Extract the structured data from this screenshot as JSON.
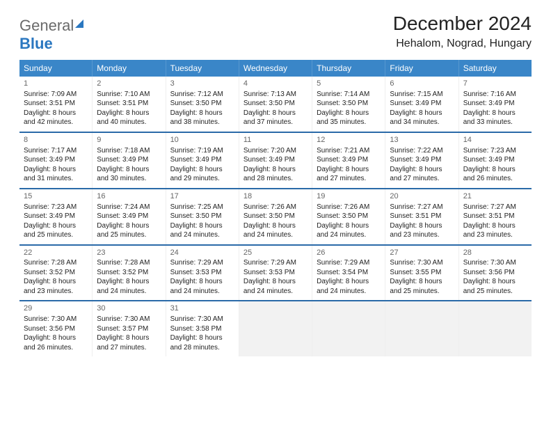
{
  "brand": {
    "word1": "General",
    "word2": "Blue"
  },
  "title": "December 2024",
  "location": "Hehalom, Nograd, Hungary",
  "colors": {
    "header_bg": "#3a86c8",
    "week_border": "#2a6aa8",
    "brand_gray": "#6a6a6a",
    "brand_blue": "#2a77c0",
    "empty_bg": "#f2f2f2"
  },
  "daynames": [
    "Sunday",
    "Monday",
    "Tuesday",
    "Wednesday",
    "Thursday",
    "Friday",
    "Saturday"
  ],
  "weeks": [
    [
      {
        "n": "1",
        "sr": "Sunrise: 7:09 AM",
        "ss": "Sunset: 3:51 PM",
        "d1": "Daylight: 8 hours",
        "d2": "and 42 minutes."
      },
      {
        "n": "2",
        "sr": "Sunrise: 7:10 AM",
        "ss": "Sunset: 3:51 PM",
        "d1": "Daylight: 8 hours",
        "d2": "and 40 minutes."
      },
      {
        "n": "3",
        "sr": "Sunrise: 7:12 AM",
        "ss": "Sunset: 3:50 PM",
        "d1": "Daylight: 8 hours",
        "d2": "and 38 minutes."
      },
      {
        "n": "4",
        "sr": "Sunrise: 7:13 AM",
        "ss": "Sunset: 3:50 PM",
        "d1": "Daylight: 8 hours",
        "d2": "and 37 minutes."
      },
      {
        "n": "5",
        "sr": "Sunrise: 7:14 AM",
        "ss": "Sunset: 3:50 PM",
        "d1": "Daylight: 8 hours",
        "d2": "and 35 minutes."
      },
      {
        "n": "6",
        "sr": "Sunrise: 7:15 AM",
        "ss": "Sunset: 3:49 PM",
        "d1": "Daylight: 8 hours",
        "d2": "and 34 minutes."
      },
      {
        "n": "7",
        "sr": "Sunrise: 7:16 AM",
        "ss": "Sunset: 3:49 PM",
        "d1": "Daylight: 8 hours",
        "d2": "and 33 minutes."
      }
    ],
    [
      {
        "n": "8",
        "sr": "Sunrise: 7:17 AM",
        "ss": "Sunset: 3:49 PM",
        "d1": "Daylight: 8 hours",
        "d2": "and 31 minutes."
      },
      {
        "n": "9",
        "sr": "Sunrise: 7:18 AM",
        "ss": "Sunset: 3:49 PM",
        "d1": "Daylight: 8 hours",
        "d2": "and 30 minutes."
      },
      {
        "n": "10",
        "sr": "Sunrise: 7:19 AM",
        "ss": "Sunset: 3:49 PM",
        "d1": "Daylight: 8 hours",
        "d2": "and 29 minutes."
      },
      {
        "n": "11",
        "sr": "Sunrise: 7:20 AM",
        "ss": "Sunset: 3:49 PM",
        "d1": "Daylight: 8 hours",
        "d2": "and 28 minutes."
      },
      {
        "n": "12",
        "sr": "Sunrise: 7:21 AM",
        "ss": "Sunset: 3:49 PM",
        "d1": "Daylight: 8 hours",
        "d2": "and 27 minutes."
      },
      {
        "n": "13",
        "sr": "Sunrise: 7:22 AM",
        "ss": "Sunset: 3:49 PM",
        "d1": "Daylight: 8 hours",
        "d2": "and 27 minutes."
      },
      {
        "n": "14",
        "sr": "Sunrise: 7:23 AM",
        "ss": "Sunset: 3:49 PM",
        "d1": "Daylight: 8 hours",
        "d2": "and 26 minutes."
      }
    ],
    [
      {
        "n": "15",
        "sr": "Sunrise: 7:23 AM",
        "ss": "Sunset: 3:49 PM",
        "d1": "Daylight: 8 hours",
        "d2": "and 25 minutes."
      },
      {
        "n": "16",
        "sr": "Sunrise: 7:24 AM",
        "ss": "Sunset: 3:49 PM",
        "d1": "Daylight: 8 hours",
        "d2": "and 25 minutes."
      },
      {
        "n": "17",
        "sr": "Sunrise: 7:25 AM",
        "ss": "Sunset: 3:50 PM",
        "d1": "Daylight: 8 hours",
        "d2": "and 24 minutes."
      },
      {
        "n": "18",
        "sr": "Sunrise: 7:26 AM",
        "ss": "Sunset: 3:50 PM",
        "d1": "Daylight: 8 hours",
        "d2": "and 24 minutes."
      },
      {
        "n": "19",
        "sr": "Sunrise: 7:26 AM",
        "ss": "Sunset: 3:50 PM",
        "d1": "Daylight: 8 hours",
        "d2": "and 24 minutes."
      },
      {
        "n": "20",
        "sr": "Sunrise: 7:27 AM",
        "ss": "Sunset: 3:51 PM",
        "d1": "Daylight: 8 hours",
        "d2": "and 23 minutes."
      },
      {
        "n": "21",
        "sr": "Sunrise: 7:27 AM",
        "ss": "Sunset: 3:51 PM",
        "d1": "Daylight: 8 hours",
        "d2": "and 23 minutes."
      }
    ],
    [
      {
        "n": "22",
        "sr": "Sunrise: 7:28 AM",
        "ss": "Sunset: 3:52 PM",
        "d1": "Daylight: 8 hours",
        "d2": "and 23 minutes."
      },
      {
        "n": "23",
        "sr": "Sunrise: 7:28 AM",
        "ss": "Sunset: 3:52 PM",
        "d1": "Daylight: 8 hours",
        "d2": "and 24 minutes."
      },
      {
        "n": "24",
        "sr": "Sunrise: 7:29 AM",
        "ss": "Sunset: 3:53 PM",
        "d1": "Daylight: 8 hours",
        "d2": "and 24 minutes."
      },
      {
        "n": "25",
        "sr": "Sunrise: 7:29 AM",
        "ss": "Sunset: 3:53 PM",
        "d1": "Daylight: 8 hours",
        "d2": "and 24 minutes."
      },
      {
        "n": "26",
        "sr": "Sunrise: 7:29 AM",
        "ss": "Sunset: 3:54 PM",
        "d1": "Daylight: 8 hours",
        "d2": "and 24 minutes."
      },
      {
        "n": "27",
        "sr": "Sunrise: 7:30 AM",
        "ss": "Sunset: 3:55 PM",
        "d1": "Daylight: 8 hours",
        "d2": "and 25 minutes."
      },
      {
        "n": "28",
        "sr": "Sunrise: 7:30 AM",
        "ss": "Sunset: 3:56 PM",
        "d1": "Daylight: 8 hours",
        "d2": "and 25 minutes."
      }
    ],
    [
      {
        "n": "29",
        "sr": "Sunrise: 7:30 AM",
        "ss": "Sunset: 3:56 PM",
        "d1": "Daylight: 8 hours",
        "d2": "and 26 minutes."
      },
      {
        "n": "30",
        "sr": "Sunrise: 7:30 AM",
        "ss": "Sunset: 3:57 PM",
        "d1": "Daylight: 8 hours",
        "d2": "and 27 minutes."
      },
      {
        "n": "31",
        "sr": "Sunrise: 7:30 AM",
        "ss": "Sunset: 3:58 PM",
        "d1": "Daylight: 8 hours",
        "d2": "and 28 minutes."
      },
      {
        "empty": true
      },
      {
        "empty": true
      },
      {
        "empty": true
      },
      {
        "empty": true
      }
    ]
  ]
}
